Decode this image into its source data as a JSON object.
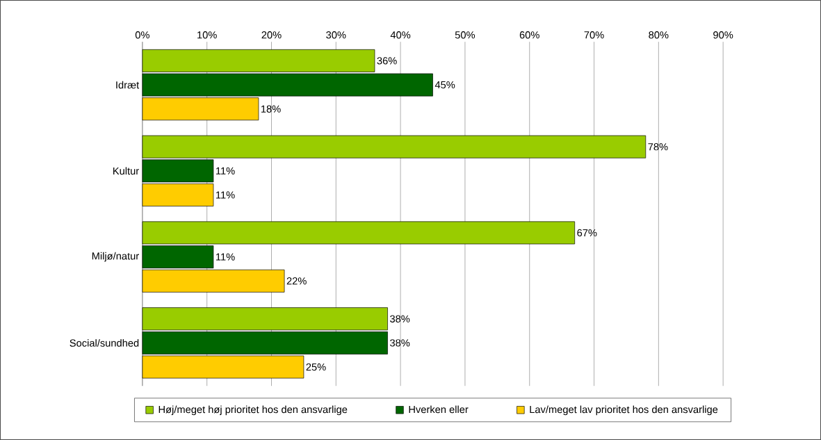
{
  "chart_data": {
    "type": "bar",
    "orientation": "horizontal",
    "categories": [
      "Idræt",
      "Kultur",
      "Miljø/natur",
      "Social/sundhed"
    ],
    "series": [
      {
        "name": "Høj/meget høj prioritet hos den ansvarlige",
        "color": "#99cc00",
        "values": [
          36,
          78,
          67,
          38
        ],
        "value_labels": [
          "36%",
          "78%",
          "67%",
          "38%"
        ]
      },
      {
        "name": "Hverken eller",
        "color": "#006600",
        "values": [
          45,
          11,
          11,
          38
        ],
        "value_labels": [
          "45%",
          "11%",
          "11%",
          "38%"
        ]
      },
      {
        "name": "Lav/meget lav prioritet hos den ansvarlige",
        "color": "#ffcc00",
        "values": [
          18,
          11,
          22,
          25
        ],
        "value_labels": [
          "18%",
          "11%",
          "22%",
          "25%"
        ]
      }
    ],
    "xlim": [
      0,
      90
    ],
    "xticks": [
      {
        "value": 0,
        "label": "0%"
      },
      {
        "value": 10,
        "label": "10%"
      },
      {
        "value": 20,
        "label": "20%"
      },
      {
        "value": 30,
        "label": "30%"
      },
      {
        "value": 40,
        "label": "40%"
      },
      {
        "value": 50,
        "label": "50%"
      },
      {
        "value": 60,
        "label": "60%"
      },
      {
        "value": 70,
        "label": "70%"
      },
      {
        "value": 80,
        "label": "80%"
      },
      {
        "value": 90,
        "label": "90%"
      }
    ],
    "grid": "x",
    "legend": "bottom"
  }
}
